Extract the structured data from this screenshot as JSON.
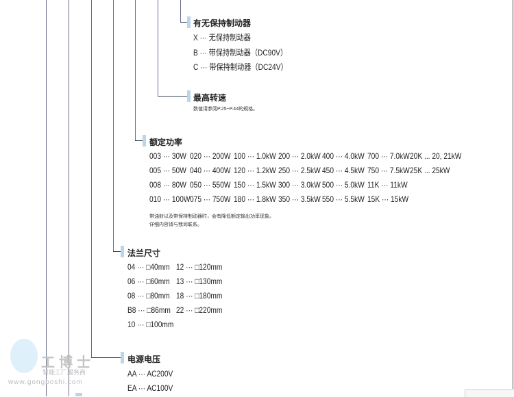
{
  "brake": {
    "title": "有无保持制动器",
    "items": [
      "X ··· 无保持制动器",
      "B ··· 带保持制动器（DC90V）",
      "C ··· 带保持制动器（DC24V）"
    ]
  },
  "speed": {
    "title": "最高转速",
    "note": "数值请参阅P.25~P.44的规格。"
  },
  "power": {
    "title": "额定功率",
    "rows": [
      [
        "003 ··· 30W",
        "020 ··· 200W",
        "100 ··· 1.0kW",
        "200 ··· 2.0kW",
        "400 ··· 4.0kW",
        "700 ··· 7.0kW",
        "20K ... 20, 21kW"
      ],
      [
        "005 ··· 50W",
        "040 ··· 400W",
        "120 ··· 1.2kW",
        "250 ··· 2.5kW",
        "450 ··· 4.5kW",
        "750 ··· 7.5kW",
        "25K ... 25kW"
      ],
      [
        "008 ··· 80W",
        "050 ··· 550W",
        "150 ··· 1.5kW",
        "300 ··· 3.0kW",
        "500 ··· 5.0kW",
        "11K ··· 11kW",
        ""
      ],
      [
        "010 ··· 100W",
        "075 ··· 750W",
        "180 ··· 1.8kW",
        "350 ··· 3.5kW",
        "550 ··· 5.5kW",
        "15K ··· 15kW",
        ""
      ]
    ],
    "note1": "带油封以及带保持制动器时，会有降低额定输出功率现象。",
    "note2": "详细内容请与我司联系。"
  },
  "flange": {
    "title": "法兰尺寸",
    "col1": [
      "04 ··· □40mm",
      "06 ··· □60mm",
      "08 ··· □80mm",
      "B8 ··· □86mm",
      "10 ··· □100mm"
    ],
    "col2": [
      "12 ··· □120mm",
      "13 ··· □130mm",
      "18 ··· □180mm",
      "22 ··· □220mm"
    ]
  },
  "voltage": {
    "title": "电源电压",
    "items": [
      "AA ··· AC200V",
      "EA ··· AC100V"
    ]
  },
  "watermark": {
    "name": "工博士",
    "slogan": "智能工厂服务商",
    "url": "www.gongboshi.com"
  }
}
